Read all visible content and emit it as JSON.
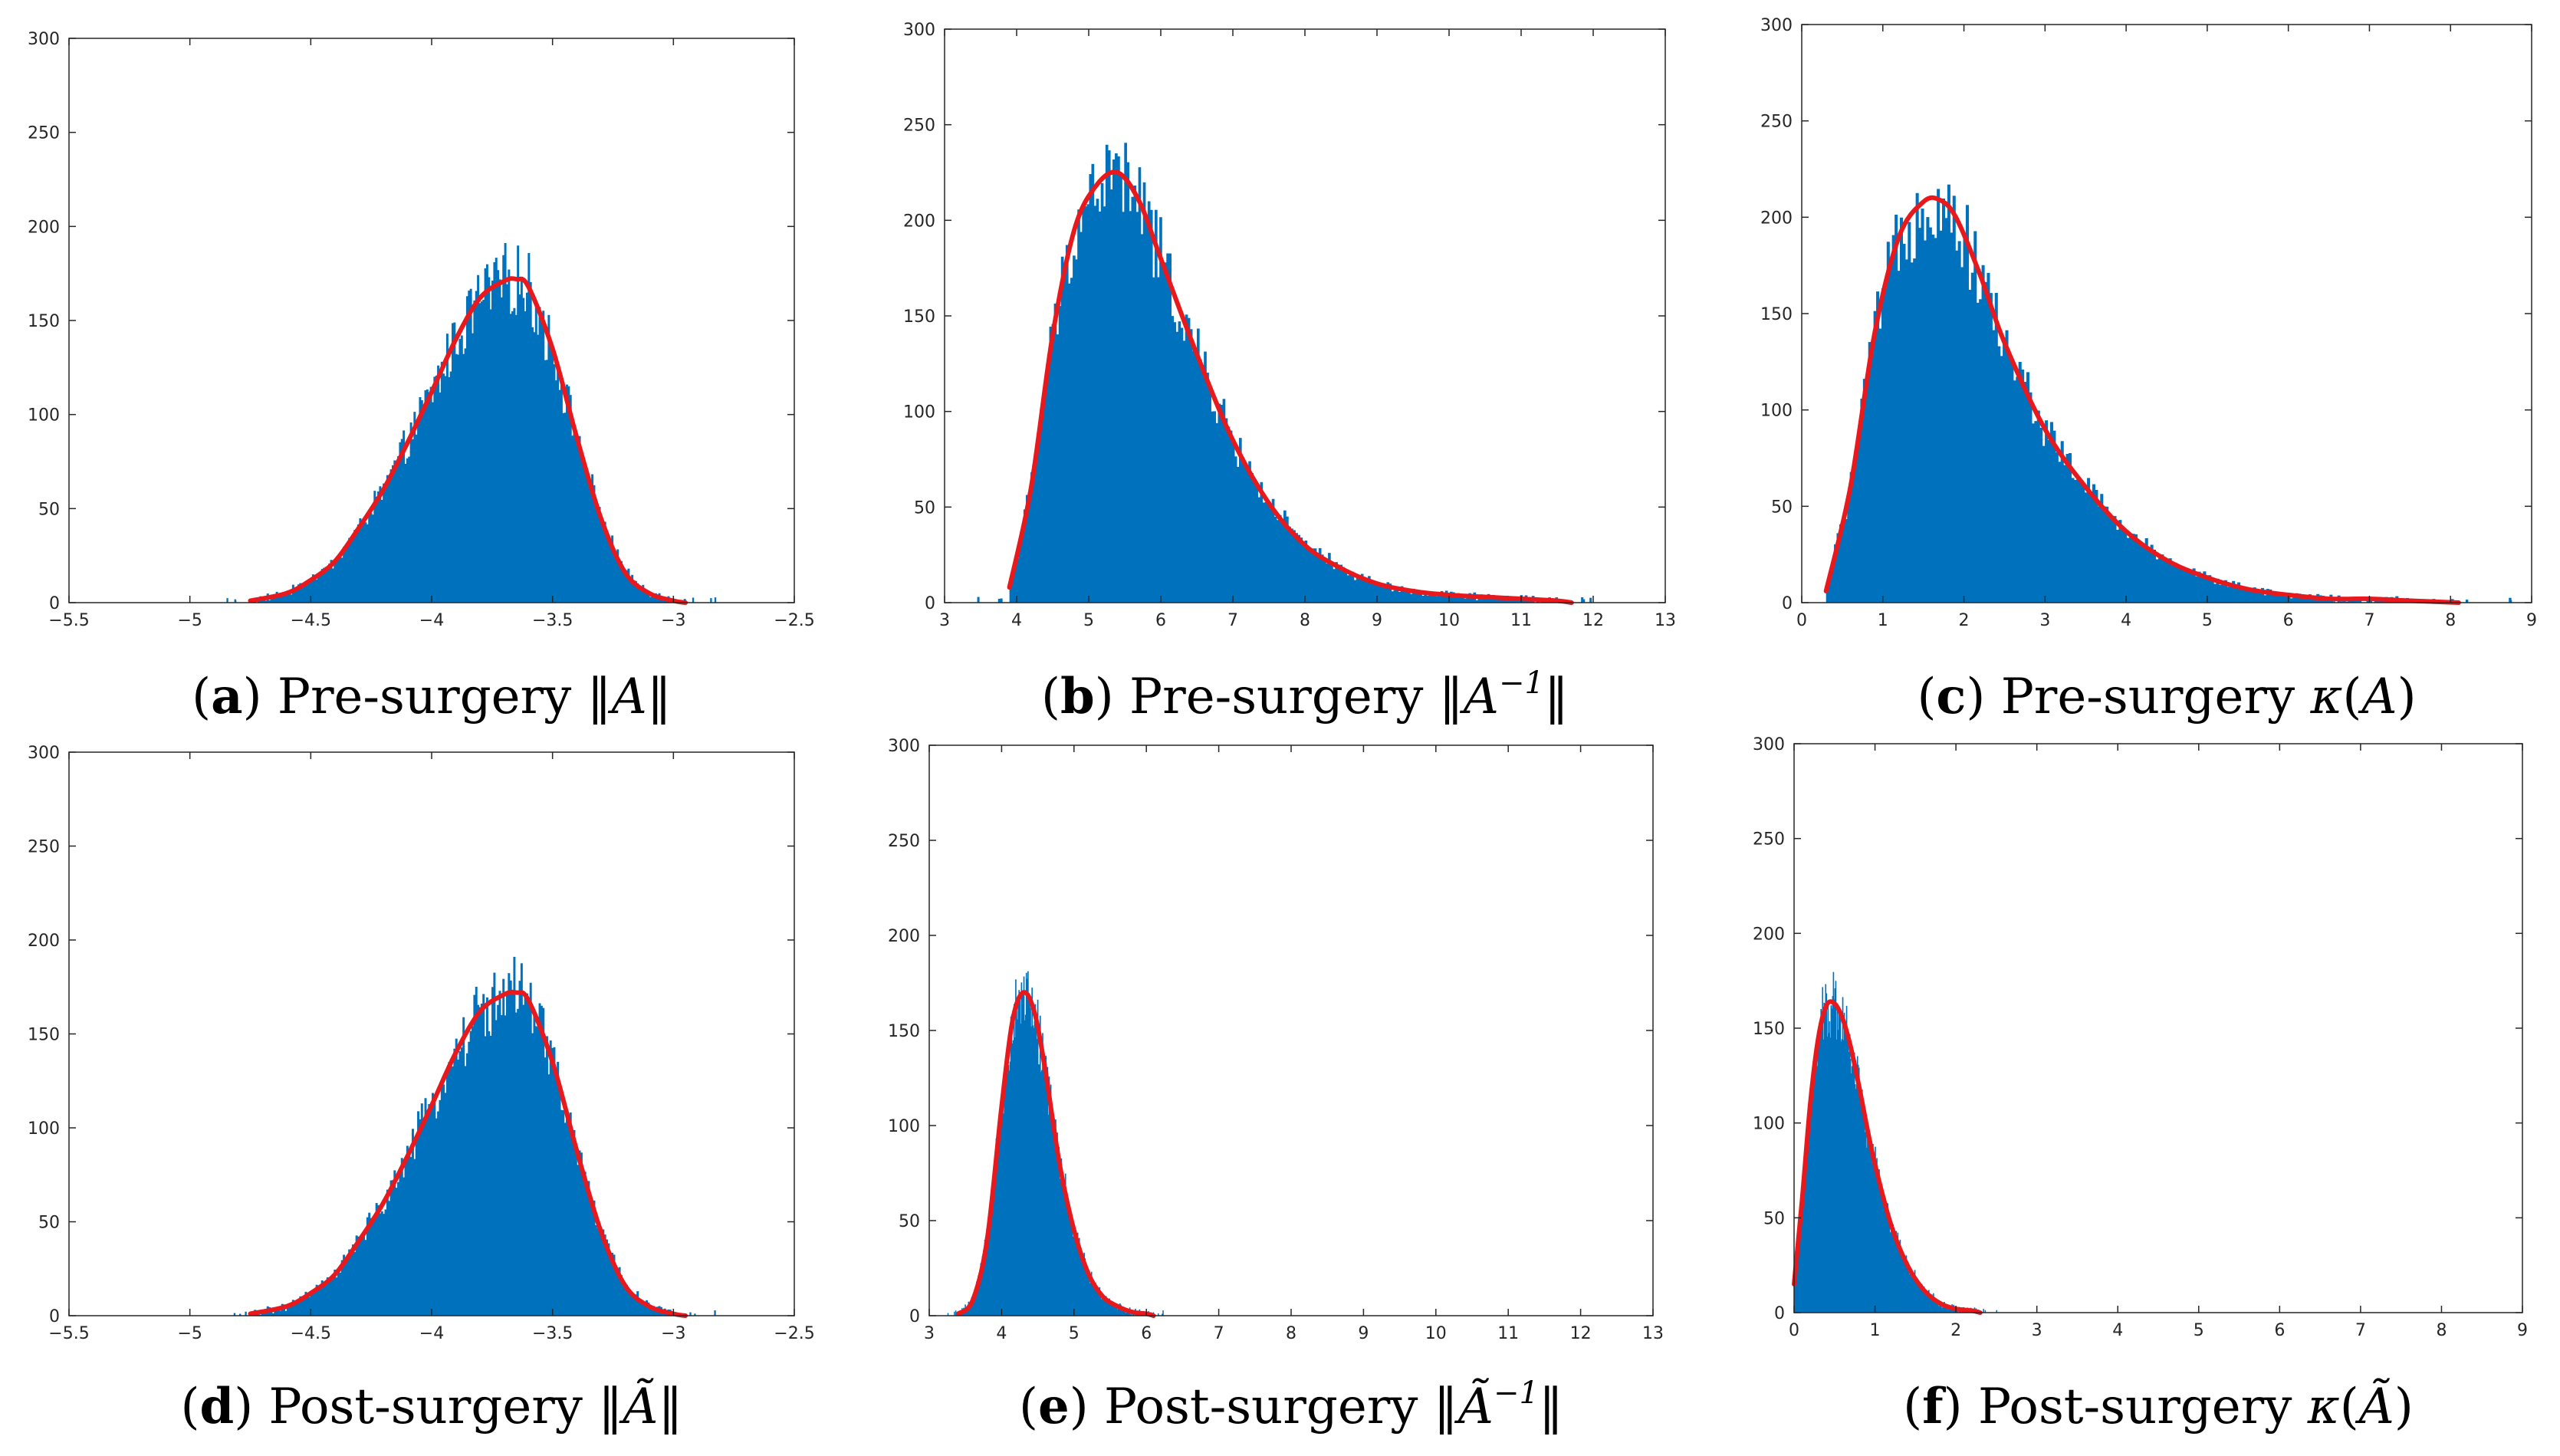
{
  "colors": {
    "bar": "#0072BD",
    "fit": "#E8191C",
    "axis": "#262626"
  },
  "chart_data": [
    {
      "type": "bar",
      "panel": "a",
      "caption": {
        "letter": "a",
        "prefix": "Pre-surgery ",
        "math": "‖A‖",
        "sym": "A",
        "tilde": false,
        "sup": ""
      },
      "xlim": [
        -5.5,
        -2.5
      ],
      "ylim": [
        0,
        300
      ],
      "xticks": [
        -5.5,
        -5,
        -4.5,
        -4,
        -3.5,
        -3,
        -2.5
      ],
      "yticks": [
        0,
        50,
        100,
        150,
        200,
        250,
        300
      ],
      "x": [
        -4.75,
        -4.6,
        -4.5,
        -4.4,
        -4.3,
        -4.2,
        -4.1,
        -4.0,
        -3.9,
        -3.8,
        -3.7,
        -3.65,
        -3.6,
        -3.5,
        -3.4,
        -3.3,
        -3.2,
        -3.1,
        -3.0,
        -2.95
      ],
      "fit": [
        1,
        5,
        12,
        22,
        40,
        60,
        85,
        112,
        140,
        162,
        171,
        172,
        168,
        135,
        88,
        45,
        16,
        5,
        1,
        0
      ]
    },
    {
      "type": "bar",
      "panel": "b",
      "caption": {
        "letter": "b",
        "prefix": "Pre-surgery ",
        "math": "‖A⁻¹‖",
        "sym": "A",
        "tilde": false,
        "sup": "−1"
      },
      "xlim": [
        3,
        13
      ],
      "ylim": [
        0,
        300
      ],
      "xticks": [
        3,
        4,
        5,
        6,
        7,
        8,
        9,
        10,
        11,
        12,
        13
      ],
      "yticks": [
        0,
        50,
        100,
        150,
        200,
        250,
        300
      ],
      "x": [
        3.9,
        4.2,
        4.5,
        4.8,
        5.1,
        5.4,
        5.7,
        6.0,
        6.5,
        7.0,
        7.5,
        8.0,
        8.5,
        9.0,
        9.5,
        10.0,
        10.5,
        11.0,
        11.5,
        11.7
      ],
      "fit": [
        8,
        60,
        140,
        195,
        218,
        225,
        210,
        180,
        130,
        85,
        52,
        30,
        18,
        10,
        6,
        4,
        3,
        2,
        1,
        0
      ]
    },
    {
      "type": "bar",
      "panel": "c",
      "caption": {
        "letter": "c",
        "prefix": "Pre-surgery ",
        "math": "κ(A)",
        "sym": "A",
        "tilde": false,
        "sup": ""
      },
      "xlim": [
        0,
        9
      ],
      "ylim": [
        0,
        300
      ],
      "xticks": [
        0,
        1,
        2,
        3,
        4,
        5,
        6,
        7,
        8,
        9
      ],
      "yticks": [
        0,
        50,
        100,
        150,
        200,
        250,
        300
      ],
      "x": [
        0.3,
        0.6,
        0.9,
        1.2,
        1.5,
        1.7,
        1.9,
        2.2,
        2.5,
        3.0,
        3.5,
        4.0,
        4.5,
        5.0,
        5.5,
        6.0,
        6.5,
        7.0,
        7.5,
        8.1
      ],
      "fit": [
        6,
        60,
        140,
        190,
        208,
        209,
        200,
        170,
        135,
        90,
        60,
        37,
        22,
        13,
        7,
        4,
        2,
        2,
        1,
        0
      ]
    },
    {
      "type": "bar",
      "panel": "d",
      "caption": {
        "letter": "d",
        "prefix": "Post-surgery ",
        "math": "‖Ã‖",
        "sym": "A",
        "tilde": true,
        "sup": ""
      },
      "xlim": [
        -5.5,
        -2.5
      ],
      "ylim": [
        0,
        300
      ],
      "xticks": [
        -5.5,
        -5,
        -4.5,
        -4,
        -3.5,
        -3,
        -2.5
      ],
      "yticks": [
        0,
        50,
        100,
        150,
        200,
        250,
        300
      ],
      "x": [
        -4.75,
        -4.6,
        -4.5,
        -4.4,
        -4.3,
        -4.2,
        -4.1,
        -4.0,
        -3.9,
        -3.8,
        -3.7,
        -3.65,
        -3.6,
        -3.5,
        -3.4,
        -3.3,
        -3.2,
        -3.1,
        -3.0,
        -2.95
      ],
      "fit": [
        1,
        5,
        12,
        22,
        40,
        60,
        85,
        112,
        140,
        162,
        171,
        172,
        168,
        135,
        88,
        45,
        16,
        5,
        1,
        0
      ]
    },
    {
      "type": "bar",
      "panel": "e",
      "caption": {
        "letter": "e",
        "prefix": "Post-surgery ",
        "math": "‖Ã⁻¹‖",
        "sym": "A",
        "tilde": true,
        "sup": "−1"
      },
      "xlim": [
        3,
        13
      ],
      "ylim": [
        0,
        300
      ],
      "xticks": [
        3,
        4,
        5,
        6,
        7,
        8,
        9,
        10,
        11,
        12,
        13
      ],
      "yticks": [
        0,
        50,
        100,
        150,
        200,
        250,
        300
      ],
      "x": [
        3.4,
        3.6,
        3.8,
        4.0,
        4.15,
        4.3,
        4.45,
        4.6,
        4.8,
        5.0,
        5.2,
        5.4,
        5.6,
        5.8,
        6.0,
        6.1
      ],
      "fit": [
        1,
        8,
        40,
        110,
        155,
        170,
        160,
        130,
        80,
        45,
        22,
        10,
        5,
        2,
        1,
        0
      ]
    },
    {
      "type": "bar",
      "panel": "f",
      "caption": {
        "letter": "f",
        "prefix": "Post-surgery ",
        "math": "κ(Ã)",
        "sym": "A",
        "tilde": true,
        "sup": ""
      },
      "xlim": [
        0,
        9
      ],
      "ylim": [
        0,
        300
      ],
      "xticks": [
        0,
        1,
        2,
        3,
        4,
        5,
        6,
        7,
        8,
        9
      ],
      "yticks": [
        0,
        50,
        100,
        150,
        200,
        250,
        300
      ],
      "x": [
        0.0,
        0.1,
        0.2,
        0.3,
        0.4,
        0.5,
        0.6,
        0.7,
        0.8,
        0.9,
        1.0,
        1.2,
        1.4,
        1.6,
        1.8,
        2.0,
        2.2,
        2.3
      ],
      "fit": [
        15,
        60,
        110,
        145,
        162,
        163,
        155,
        140,
        120,
        98,
        78,
        46,
        25,
        12,
        5,
        2,
        1,
        0
      ]
    }
  ]
}
